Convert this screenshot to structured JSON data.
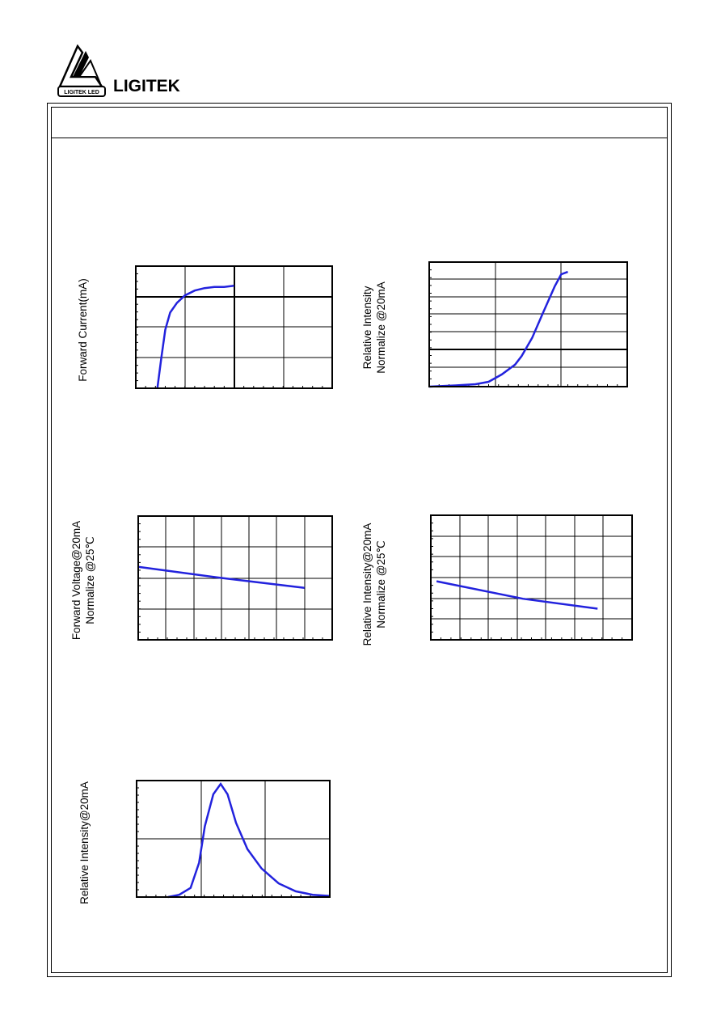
{
  "brand": {
    "name": "LIGITEK",
    "logo_text": "LIGITEK LED"
  },
  "colors": {
    "curve": "#2222dd",
    "grid": "#000000"
  },
  "chart_data": [
    {
      "type": "line",
      "ylabel": "Forward Current(mA)",
      "xlabel": "",
      "title": "",
      "series": [
        {
          "points": [
            [
              0.72,
              0.0
            ],
            [
              0.76,
              0.25
            ],
            [
              0.8,
              0.48
            ],
            [
              0.85,
              0.62
            ],
            [
              0.92,
              0.7
            ],
            [
              1.0,
              0.76
            ],
            [
              1.1,
              0.8
            ],
            [
              1.2,
              0.82
            ],
            [
              1.3,
              0.83
            ],
            [
              1.4,
              0.83
            ],
            [
              1.5,
              0.84
            ]
          ]
        }
      ]
    },
    {
      "type": "line",
      "ylabel": "Relative Intensity",
      "ylabel2": "Normalize @20mA",
      "xlabel": "",
      "title": "",
      "series": [
        {
          "points": [
            [
              0.0,
              0.0
            ],
            [
              0.2,
              0.01
            ],
            [
              0.35,
              0.02
            ],
            [
              0.45,
              0.04
            ],
            [
              0.55,
              0.1
            ],
            [
              0.65,
              0.18
            ],
            [
              0.7,
              0.25
            ],
            [
              0.78,
              0.4
            ],
            [
              0.86,
              0.6
            ],
            [
              0.95,
              0.82
            ],
            [
              1.0,
              0.92
            ],
            [
              1.05,
              0.94
            ]
          ]
        }
      ]
    },
    {
      "type": "line",
      "ylabel": "Forward  Voltage@20mA",
      "ylabel2": "Normalize @25℃",
      "xlabel": "",
      "title": "",
      "series": [
        {
          "points": [
            [
              0.0,
              0.59
            ],
            [
              3.0,
              0.5
            ],
            [
              6.0,
              0.42
            ]
          ]
        }
      ]
    },
    {
      "type": "line",
      "ylabel": "Relative Intensity@20mA",
      "ylabel2": "Normalize @25℃",
      "xlabel": "",
      "title": "",
      "series": [
        {
          "points": [
            [
              0.2,
              0.47
            ],
            [
              3.2,
              0.33
            ],
            [
              5.8,
              0.25
            ]
          ]
        }
      ]
    },
    {
      "type": "line",
      "ylabel": "Relative Intensity@20mA",
      "xlabel": "",
      "title": "",
      "series": [
        {
          "points": [
            [
              0.55,
              0.0
            ],
            [
              0.75,
              0.02
            ],
            [
              0.95,
              0.08
            ],
            [
              1.1,
              0.3
            ],
            [
              1.2,
              0.62
            ],
            [
              1.35,
              0.9
            ],
            [
              1.48,
              0.99
            ],
            [
              1.6,
              0.9
            ],
            [
              1.75,
              0.65
            ],
            [
              1.95,
              0.42
            ],
            [
              2.2,
              0.25
            ],
            [
              2.5,
              0.12
            ],
            [
              2.8,
              0.05
            ],
            [
              3.1,
              0.02
            ],
            [
              3.4,
              0.01
            ]
          ]
        }
      ]
    }
  ]
}
